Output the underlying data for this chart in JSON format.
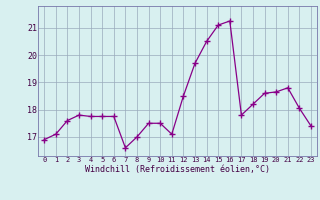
{
  "x": [
    0,
    1,
    2,
    3,
    4,
    5,
    6,
    7,
    8,
    9,
    10,
    11,
    12,
    13,
    14,
    15,
    16,
    17,
    18,
    19,
    20,
    21,
    22,
    23
  ],
  "y": [
    16.9,
    17.1,
    17.6,
    17.8,
    17.75,
    17.75,
    17.75,
    16.6,
    17.0,
    17.5,
    17.5,
    17.1,
    18.5,
    19.7,
    20.5,
    21.1,
    21.25,
    17.8,
    18.2,
    18.6,
    18.65,
    18.8,
    18.05,
    17.4
  ],
  "line_color": "#880088",
  "marker": "x",
  "marker_size": 3,
  "bg_color": "#d8f0f0",
  "grid_color": "#99aabb",
  "xlabel": "Windchill (Refroidissement éolien,°C)",
  "ylim": [
    16.3,
    21.8
  ],
  "yticks": [
    17,
    18,
    19,
    20,
    21
  ],
  "ytick_labels": [
    "17",
    "18",
    "19",
    "20",
    "21"
  ],
  "xticks": [
    0,
    1,
    2,
    3,
    4,
    5,
    6,
    7,
    8,
    9,
    10,
    11,
    12,
    13,
    14,
    15,
    16,
    17,
    18,
    19,
    20,
    21,
    22,
    23
  ],
  "xtick_labels": [
    "0",
    "1",
    "2",
    "3",
    "4",
    "5",
    "6",
    "7",
    "8",
    "9",
    "10",
    "11",
    "12",
    "13",
    "14",
    "15",
    "16",
    "17",
    "18",
    "19",
    "20",
    "21",
    "22",
    "23"
  ],
  "xlim": [
    -0.5,
    23.5
  ],
  "tick_color": "#440044",
  "axis_label_color": "#440044",
  "spine_color": "#7777aa",
  "xlabel_fontsize": 6.0,
  "xtick_fontsize": 5.0,
  "ytick_fontsize": 6.0
}
